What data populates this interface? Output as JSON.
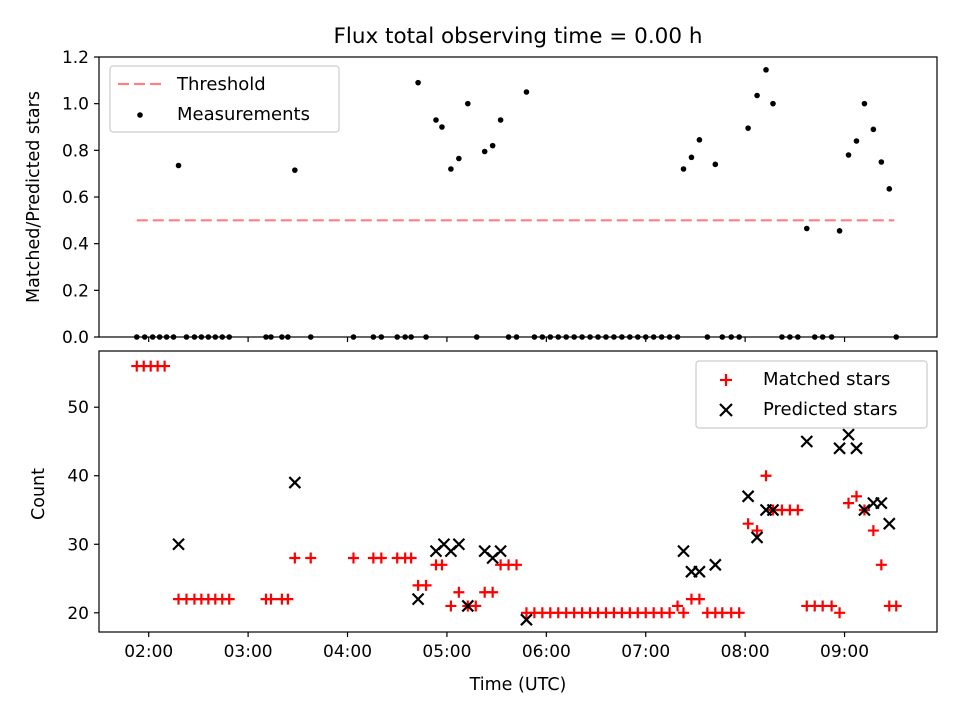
{
  "colors": {
    "threshold": "#ff7f7f",
    "measurement": "#000000",
    "matched": "#ff0000",
    "predicted": "#000000"
  },
  "chart_data": [
    {
      "type": "scatter",
      "title": "Flux total observing time = 0.00 h",
      "xlabel": "",
      "ylabel": "Matched/Predicted stars",
      "xlim": [
        1.5,
        9.93
      ],
      "ylim": [
        0,
        1.2
      ],
      "yticks": [
        "0.0",
        "0.2",
        "0.4",
        "0.6",
        "0.8",
        "1.0",
        "1.2"
      ],
      "legend": {
        "placement": "top-left",
        "entries": [
          "Threshold",
          "Measurements"
        ]
      },
      "threshold": {
        "name": "Threshold",
        "y": 0.5,
        "x": [
          1.88,
          9.5
        ]
      },
      "series": [
        {
          "name": "Measurements",
          "x": [
            1.88,
            1.96,
            2.04,
            2.11,
            2.18,
            2.25,
            2.3,
            2.38,
            2.46,
            2.53,
            2.6,
            2.67,
            2.74,
            2.81,
            3.18,
            3.23,
            3.34,
            3.4,
            3.47,
            3.63,
            4.06,
            4.26,
            4.34,
            4.5,
            4.58,
            4.64,
            4.71,
            4.79,
            4.89,
            4.95,
            5.04,
            5.12,
            5.21,
            5.3,
            5.38,
            5.46,
            5.54,
            5.62,
            5.7,
            5.8,
            5.88,
            5.96,
            6.04,
            6.12,
            6.2,
            6.28,
            6.36,
            6.44,
            6.52,
            6.6,
            6.68,
            6.76,
            6.84,
            6.92,
            7.0,
            7.08,
            7.16,
            7.24,
            7.32,
            7.38,
            7.46,
            7.54,
            7.62,
            7.7,
            7.77,
            7.86,
            7.94,
            8.03,
            8.12,
            8.21,
            8.28,
            8.37,
            8.45,
            8.53,
            8.62,
            8.7,
            8.78,
            8.87,
            8.95,
            9.04,
            9.12,
            9.2,
            9.29,
            9.37,
            9.45,
            9.52
          ],
          "y": [
            0,
            0,
            0,
            0,
            0,
            0,
            0.735,
            0,
            0,
            0,
            0,
            0,
            0,
            0,
            0,
            0,
            0,
            0,
            0.715,
            0,
            0,
            0,
            0,
            0,
            0,
            0,
            1.09,
            0,
            0.93,
            0.9,
            0.72,
            0.765,
            1.0,
            0,
            0.795,
            0.82,
            0.93,
            0,
            0,
            1.05,
            0,
            0,
            0,
            0,
            0,
            0,
            0,
            0,
            0,
            0,
            0,
            0,
            0,
            0,
            0,
            0,
            0,
            0,
            0,
            0.72,
            0.77,
            0.845,
            0,
            0.74,
            0,
            0,
            0,
            0.895,
            1.035,
            1.145,
            1.0,
            0,
            0,
            0,
            0.465,
            0,
            0,
            0,
            0.455,
            0.78,
            0.84,
            1.0,
            0.89,
            0.75,
            0.635,
            0
          ]
        }
      ]
    },
    {
      "type": "scatter",
      "title": "",
      "xlabel": "Time (UTC)",
      "ylabel": "Count",
      "xlim": [
        1.5,
        9.93
      ],
      "ylim": [
        17.2,
        58.2
      ],
      "yticks": [
        "20",
        "30",
        "40",
        "50"
      ],
      "xticks": [
        "02:00",
        "03:00",
        "04:00",
        "05:00",
        "06:00",
        "07:00",
        "08:00",
        "09:00"
      ],
      "legend": {
        "placement": "top-right",
        "entries": [
          "Matched stars",
          "Predicted stars"
        ]
      },
      "series": [
        {
          "name": "Matched stars",
          "x": [
            1.88,
            1.95,
            2.02,
            2.09,
            2.16,
            2.3,
            2.38,
            2.46,
            2.53,
            2.6,
            2.67,
            2.74,
            2.81,
            3.18,
            3.23,
            3.34,
            3.4,
            3.47,
            3.63,
            4.06,
            4.26,
            4.34,
            4.5,
            4.58,
            4.64,
            4.71,
            4.79,
            4.89,
            4.95,
            5.04,
            5.12,
            5.21,
            5.29,
            5.38,
            5.46,
            5.54,
            5.62,
            5.7,
            5.8,
            5.88,
            5.96,
            6.04,
            6.12,
            6.2,
            6.28,
            6.36,
            6.44,
            6.52,
            6.6,
            6.68,
            6.76,
            6.84,
            6.92,
            7.0,
            7.08,
            7.16,
            7.24,
            7.32,
            7.38,
            7.46,
            7.54,
            7.62,
            7.7,
            7.77,
            7.86,
            7.94,
            8.03,
            8.12,
            8.21,
            8.28,
            8.37,
            8.45,
            8.53,
            8.62,
            8.7,
            8.78,
            8.87,
            8.95,
            9.04,
            9.12,
            9.2,
            9.29,
            9.37,
            9.45,
            9.52
          ],
          "y": [
            56,
            56,
            56,
            56,
            56,
            22,
            22,
            22,
            22,
            22,
            22,
            22,
            22,
            22,
            22,
            22,
            22,
            28,
            28,
            28,
            28,
            28,
            28,
            28,
            28,
            24,
            24,
            27,
            27,
            21,
            23,
            21,
            21,
            23,
            23,
            27,
            27,
            27,
            20,
            20,
            20,
            20,
            20,
            20,
            20,
            20,
            20,
            20,
            20,
            20,
            20,
            20,
            20,
            20,
            20,
            20,
            20,
            21,
            20,
            22,
            22,
            20,
            20,
            20,
            20,
            20,
            33,
            32,
            40,
            35,
            35,
            35,
            35,
            21,
            21,
            21,
            21,
            20,
            36,
            37,
            35,
            32,
            27,
            21,
            21
          ]
        },
        {
          "name": "Predicted stars",
          "x": [
            2.3,
            3.47,
            4.71,
            4.89,
            4.97,
            5.04,
            5.12,
            5.21,
            5.38,
            5.46,
            5.54,
            5.8,
            7.38,
            7.46,
            7.54,
            7.7,
            8.03,
            8.12,
            8.21,
            8.28,
            8.62,
            8.95,
            9.04,
            9.12,
            9.2,
            9.29,
            9.37,
            9.45
          ],
          "y": [
            30,
            39,
            22,
            29,
            30,
            29,
            30,
            21,
            29,
            28,
            29,
            19,
            29,
            26,
            26,
            27,
            37,
            31,
            35,
            35,
            45,
            44,
            46,
            44,
            35,
            36,
            36,
            33
          ]
        }
      ]
    }
  ]
}
